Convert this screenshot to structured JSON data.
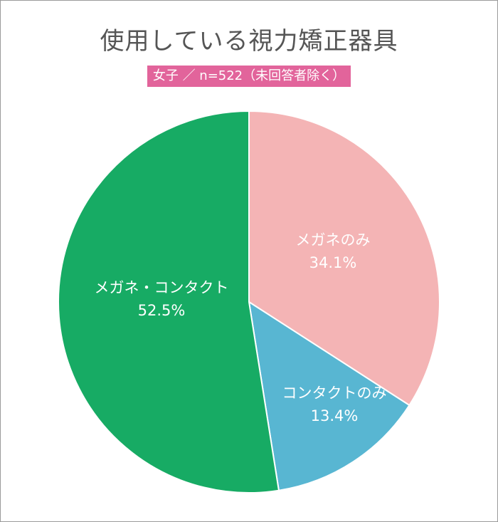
{
  "title": "使用している視力矯正器具",
  "subtitle": "女子 ／ n=522（未回答者除く）",
  "chart_data": {
    "type": "pie",
    "title": "使用している視力矯正器具",
    "subtitle": "女子 ／ n=522（未回答者除く）",
    "unit": "%",
    "slices": [
      {
        "label": "メガネのみ",
        "value": 34.1,
        "value_label": "34.1%",
        "color": "#f4b4b5",
        "label_color": "#ffffff"
      },
      {
        "label": "コンタクトのみ",
        "value": 13.4,
        "value_label": "13.4%",
        "color": "#58b6d2",
        "label_color": "#ffffff"
      },
      {
        "label": "メガネ・コンタクト",
        "value": 52.5,
        "value_label": "52.5%",
        "color": "#17ab64",
        "label_color": "#ffffff"
      }
    ],
    "start_angle": "12 o'clock",
    "direction": "clockwise",
    "legend": "none"
  }
}
